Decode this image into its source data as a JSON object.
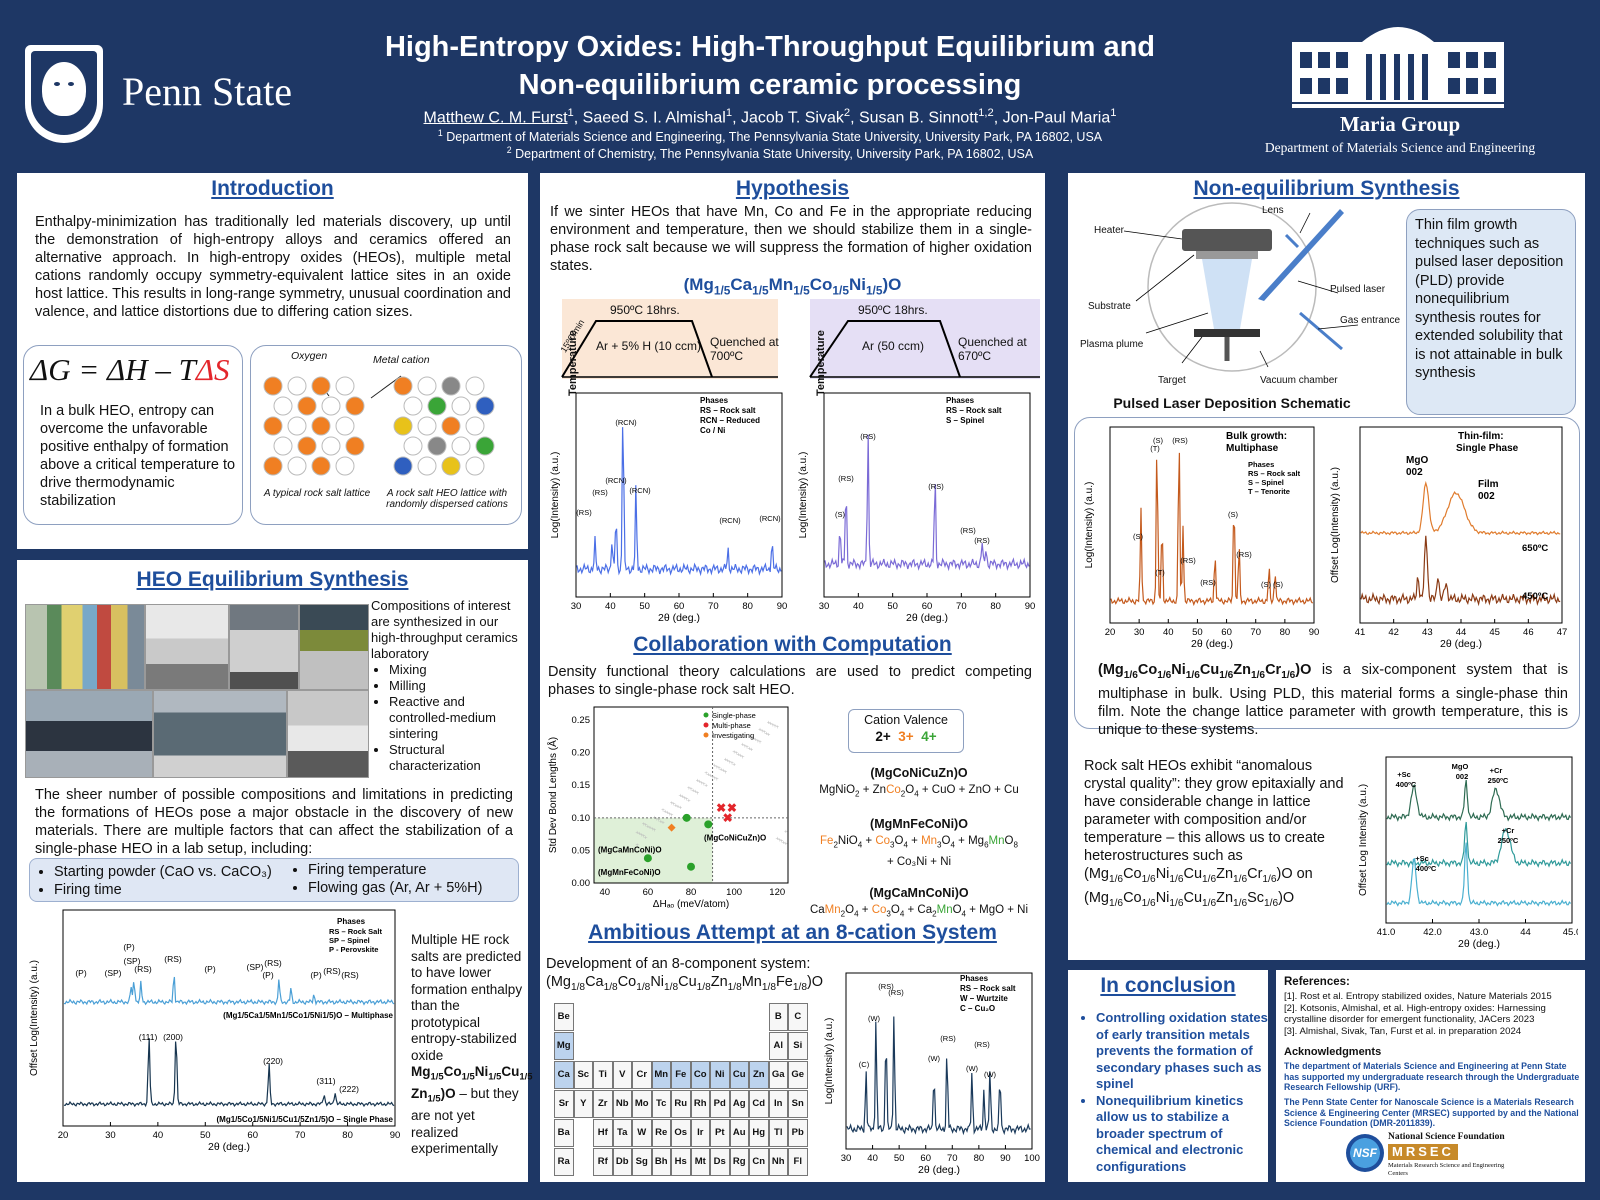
{
  "header": {
    "university": "Penn State",
    "title_line1": "High-Entropy Oxides: High-Throughput Equilibrium and",
    "title_line2": "Non-equilibrium ceramic processing",
    "authors": [
      {
        "name": "Matthew C. M. Furst",
        "sup": "1"
      },
      {
        "name": "Saeed S. I. Almishal",
        "sup": "1"
      },
      {
        "name": "Jacob T. Sivak",
        "sup": "2"
      },
      {
        "name": "Susan B. Sinnott",
        "sup": "1,2"
      },
      {
        "name": "Jon-Paul Maria",
        "sup": "1"
      }
    ],
    "affil1": "Department of Materials Science and Engineering, The Pennsylvania State University, University Park, PA 16802, USA",
    "affil1_sup": "1",
    "affil2": "Department of Chemistry, The Pennsylvania State University, University Park, PA 16802, USA",
    "affil2_sup": "2",
    "group_name": "Maria Group",
    "group_dept": "Department of Materials Science and Engineering"
  },
  "colors": {
    "navy": "#1e3765",
    "title_blue": "#1e4e9c",
    "orange": "#f07f22",
    "green": "#3aa537",
    "red": "#e3262b"
  },
  "intro": {
    "title": "Introduction",
    "text": "Enthalpy-minimization has traditionally led materials discovery, up until the demonstration of high-entropy alloys and ceramics offered an alternative approach. In high-entropy oxides (HEOs), multiple metal cations randomly occupy symmetry-equivalent lattice sites in an oxide host lattice. This results in long-range symmetry, unusual coordination and valence, and lattice distortions due to differing cation sizes.",
    "eq_lhs": "ΔG = ΔH – T",
    "eq_ds": "ΔS",
    "box_text": "In a bulk HEO, entropy can overcome the unfavorable positive enthalpy of formation above a critical temperature to drive thermodynamic stabilization",
    "label_oxygen": "Oxygen",
    "label_metal": "Metal cation",
    "caption_left": "A typical rock salt lattice",
    "caption_right": "A rock salt HEO lattice with randomly dispersed cations"
  },
  "equilibrium": {
    "title": "HEO Equilibrium Synthesis",
    "lab_intro": "Compositions of interest are synthesized in our high-throughput ceramics laboratory",
    "lab_bullets": [
      "Mixing",
      "Milling",
      "Reactive and controlled-medium sintering",
      "Structural characterization"
    ],
    "text": "The sheer number of possible compositions and limitations in predicting the formations of HEOs pose a major obstacle in the discovery of new materials. There are multiple factors that can affect the stabilization of a single-phase HEO in a lab setup, including:",
    "factors_left": [
      "Starting powder (CaO vs. CaCO₃)",
      "Firing time"
    ],
    "factors_right": [
      "Firing temperature",
      "Flowing gas (Ar, Ar + 5%H)"
    ],
    "chart_side_text_a": "Multiple HE rock salts are predicted to have lower formation enthalpy than the prototypical entropy-stabilized oxide",
    "chart_side_text_formula": "Mg1/5Co1/5Ni1/5Cu1/5Zn1/5)O",
    "chart_side_text_b": " – but they are not yet realized experimentally",
    "xrd_ylabel": "Offset Log(Intensity) (a.u.)",
    "xrd_xlabel": "2θ (deg.)",
    "xrd_xticks": [
      "20",
      "30",
      "40",
      "50",
      "60",
      "70",
      "80",
      "90"
    ],
    "legend_title": "Phases",
    "legend_lines": [
      "RS – Rock Salt",
      "SP – Spinel",
      "P - Perovskite"
    ],
    "top_caption": "(Mg1/5Ca1/5Mn1/5Co1/5Ni1/5)O – Multiphase",
    "bottom_caption": "(Mg1/5Co1/5Ni1/5Cu1/5Zn1/5)O – Single Phase"
  },
  "hypothesis": {
    "title": "Hypothesis",
    "text": "If we sinter HEOs that have Mn, Co and Fe in the appropriate reducing environment and temperature, then we should stabilize them in a single-phase rock salt because we will suppress the formation of higher oxidation states.",
    "formula": "(Mg1/5Ca1/5Mn1/5Co1/5Ni1/5)O",
    "ylabel": "Temperature",
    "left_profile": {
      "hold": "950ºC 18hrs.",
      "ramp": "15ºC/min",
      "gas": "Ar + 5% H (10 ccm)",
      "quench": "Quenched at 700ºC"
    },
    "right_profile": {
      "hold": "950ºC 18hrs.",
      "gas": "Ar (50 ccm)",
      "quench": "Quenched at 670ºC"
    },
    "xrd_ylabel": "Log(Intensity) (a.u.)",
    "xrd_xlabel": "2θ (deg.)",
    "xticks": [
      "30",
      "40",
      "50",
      "60",
      "70",
      "80",
      "90"
    ],
    "left_legend": [
      "Phases",
      "RS – Rock salt",
      "RCN – Reduced",
      "Co / Ni"
    ],
    "right_legend": [
      "Phases",
      "RS – Rock salt",
      "S – Spinel"
    ]
  },
  "computation": {
    "title": "Collaboration with Computation",
    "text": "Density functional theory calculations are used to predict competing phases to single-phase rock salt HEO.",
    "ylabel": "Std Dev Bond Lengths (Å)",
    "xlabel": "ΔHₐₒ (meV/atom)",
    "yticks": [
      "0.00",
      "0.05",
      "0.10",
      "0.15",
      "0.20",
      "0.25"
    ],
    "xticks": [
      "40",
      "60",
      "80",
      "100",
      "120"
    ],
    "legend": [
      "Single-phase",
      "Multi-phase",
      "Investigating"
    ],
    "pt_labels": [
      "(MgCaMnCoNi)O",
      "(MgMnFeCoNi)O",
      "(MgCoNiCuZn)O"
    ],
    "valence_title": "Cation Valence",
    "valence": [
      "2+",
      "3+",
      "4+"
    ],
    "rx1_title": "(MgCoNiCuZn)O",
    "rx1": "MgNiO₂ + ZnCo₂O₄ + CuO + ZnO + Cu",
    "rx2_title": "(MgMnFeCoNi)O",
    "rx2a": "Fe₂NiO₄ + Co₃O₄ + Mn₃O₄ + Mg₆MnO₈",
    "rx2b": "+ Co₃Ni + Ni",
    "rx3_title": "(MgCaMnCoNi)O",
    "rx3": "CaMn₂O₄ + Co₃O₄ + Ca₂MnO₄ + MgO + Ni"
  },
  "eight_cation": {
    "title": "Ambitious Attempt at an 8-cation System",
    "text": "Development of an 8-component system:",
    "formula": "(Mg1/8Ca1/8Co1/8Ni1/8Cu1/8Zn1/8Mn1/8Fe1/8)O",
    "periodic": [
      [
        "Be",
        "",
        "",
        "",
        "",
        "",
        "",
        "",
        "",
        "",
        "",
        "B",
        "C"
      ],
      [
        "Mg",
        "",
        "",
        "",
        "",
        "",
        "",
        "",
        "",
        "",
        "",
        "Al",
        "Si"
      ],
      [
        "Ca",
        "Sc",
        "Ti",
        "V",
        "Cr",
        "Mn",
        "Fe",
        "Co",
        "Ni",
        "Cu",
        "Zn",
        "Ga",
        "Ge"
      ],
      [
        "Sr",
        "Y",
        "Zr",
        "Nb",
        "Mo",
        "Tc",
        "Ru",
        "Rh",
        "Pd",
        "Ag",
        "Cd",
        "In",
        "Sn"
      ],
      [
        "Ba",
        "",
        "Hf",
        "Ta",
        "W",
        "Re",
        "Os",
        "Ir",
        "Pt",
        "Au",
        "Hg",
        "Tl",
        "Pb"
      ],
      [
        "Ra",
        "",
        "Rf",
        "Db",
        "Sg",
        "Bh",
        "Hs",
        "Mt",
        "Ds",
        "Rg",
        "Cn",
        "Nh",
        "Fl"
      ]
    ],
    "highlighted": [
      "Mg",
      "Ca",
      "Mn",
      "Fe",
      "Co",
      "Ni",
      "Cu",
      "Zn"
    ],
    "legend": [
      "Phases",
      "RS – Rock salt",
      "W – Wurtzite",
      "C – Cu₂O"
    ],
    "ylabel": "Log(Intensity) (a.u.)",
    "xlabel": "2θ (deg.)",
    "xticks": [
      "30",
      "40",
      "50",
      "60",
      "70",
      "80",
      "90",
      "100"
    ]
  },
  "nonequilibrium": {
    "title": "Non-equilibrium Synthesis",
    "pld_labels": [
      "Lens",
      "Heater",
      "Pulsed laser",
      "Substrate",
      "Gas entrance",
      "Plasma plume",
      "Target",
      "Vacuum chamber"
    ],
    "pld_caption": "Pulsed Laser Deposition Schematic",
    "callout": "Thin film growth techniques such as pulsed laser deposition (PLD) provide nonequilibrium synthesis routes for extended solubility that is not attainable in bulk synthesis",
    "bulk_title": "Bulk growth: Multiphase",
    "bulk_legend": [
      "Phases",
      "RS – Rock salt",
      "S – Spinel",
      "T – Tenorite"
    ],
    "bulk_ylabel": "Log(Intensity) (a.u.)",
    "bulk_xticks": [
      "20",
      "30",
      "40",
      "50",
      "60",
      "70",
      "80",
      "90"
    ],
    "thin_title": "Thin-film: Single Phase",
    "thin_labels": [
      "MgO 002",
      "Film 002",
      "650ºC",
      "450ºC"
    ],
    "thin_ylabel": "Offset Log(Intensity) (a.u.)",
    "thin_xticks": [
      "41",
      "42",
      "43",
      "44",
      "45",
      "46",
      "47"
    ],
    "xlabel": "2θ (deg.)",
    "six_text": "(Mg1/6Co1/6Ni1/6Cu1/6Zn1/6Cr1/6)O is a six-component system that is multiphase in bulk. Using PLD, this material forms a single-phase thin film. Note the change lattice parameter with growth temperature, this is unique to these systems.",
    "anomalous_text": "Rock salt HEOs exhibit “anomalous crystal quality”: they grow epitaxially and have considerable change in lattice parameter with composition and/or temperature – this allows us to create heterostructures such as (Mg1/6Co1/6Ni1/6Cu1/6Zn1/6Cr1/6)O on (Mg1/6Co1/6Ni1/6Cu1/6Zn1/6Sc1/6)O",
    "hetero_labels": [
      "+Sc 400ºC",
      "MgO 002",
      "+Cr 250ºC",
      "+Sc 400ºC",
      "+Cr 250ºC"
    ],
    "hetero_ylabel": "Offset Log Intensity (a.u.)",
    "hetero_xticks": [
      "41.0",
      "42.0",
      "43.0",
      "44",
      "45.0"
    ],
    "hetero_xlabel": "2θ (deg.)"
  },
  "conclusion": {
    "title": "In conclusion",
    "bullets": [
      "Controlling oxidation states of early transition metals prevents the formation of secondary phases such as spinel",
      "Nonequilibrium kinetics allow us to stabilize a broader spectrum of chemical and electronic configurations"
    ]
  },
  "references": {
    "title": "References:",
    "items": [
      "[1]. Rost et al. Entropy stabilized oxides, Nature Materials 2015",
      "[2]. Kotsonis, Almishal, et al. High-entropy oxides: Harnessing crystalline disorder for emergent functionality, JACers 2023",
      "[3]. Almishal, Sivak, Tan, Furst et al. in preparation 2024"
    ],
    "ack_title": "Acknowledgments",
    "ack1": "The department of Materials Science and Engineering at Penn State has supported my undergraduate research through the Undergraduate Research Fellowship (URF).",
    "ack2": "The Penn State Center for Nanoscale Science is a Materials Research Science & Engineering Center (MRSEC) supported by and the National Science Foundation (DMR-2011839).",
    "nsf_label": "National Science Foundation",
    "mrsec_label": "MRSEC",
    "mrsec_sub": "Materials Research Science and Engineering Centers"
  }
}
